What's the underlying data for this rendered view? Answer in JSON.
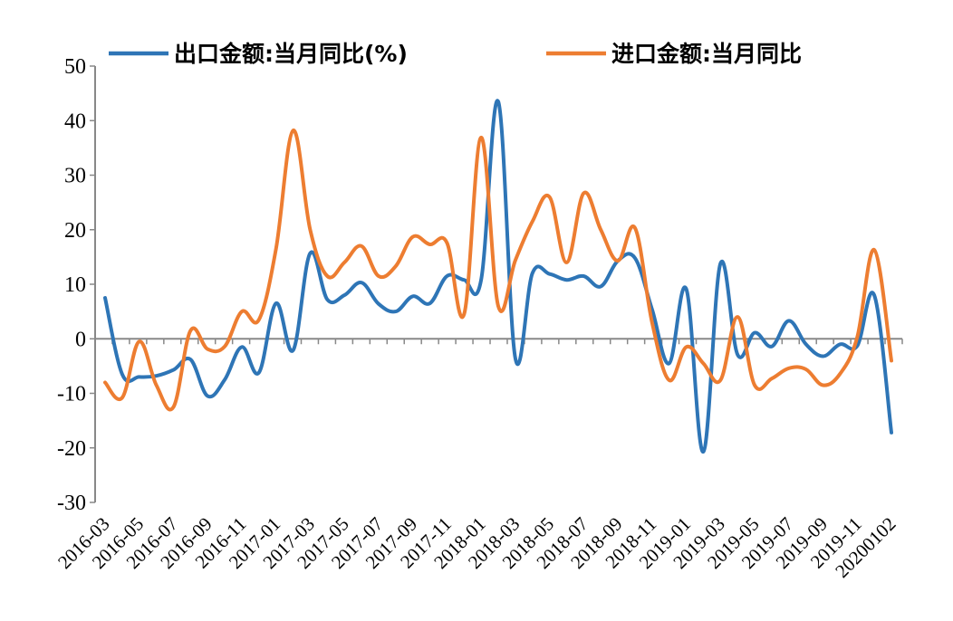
{
  "chart_data": {
    "type": "line",
    "title": "",
    "xlabel": "",
    "ylabel": "",
    "ylim": [
      -30,
      50
    ],
    "yticks": [
      50,
      40,
      30,
      20,
      10,
      0,
      -10,
      -20,
      -30
    ],
    "grid": false,
    "legend_position": "top",
    "x_tick_labels": [
      "2016-03",
      "2016-05",
      "2016-07",
      "2016-09",
      "2016-11",
      "2017-01",
      "2017-03",
      "2017-05",
      "2017-07",
      "2017-09",
      "2017-11",
      "2018-01",
      "2018-03",
      "2018-05",
      "2018-07",
      "2018-09",
      "2018-11",
      "2019-01",
      "2019-03",
      "2019-05",
      "2019-07",
      "2019-09",
      "2019-11",
      "20200102"
    ],
    "x": [
      "2016-03",
      "2016-04",
      "2016-05",
      "2016-06",
      "2016-07",
      "2016-08",
      "2016-09",
      "2016-10",
      "2016-11",
      "2016-12",
      "2017-01",
      "2017-02",
      "2017-03",
      "2017-04",
      "2017-05",
      "2017-06",
      "2017-07",
      "2017-08",
      "2017-09",
      "2017-10",
      "2017-11",
      "2017-12",
      "2018-01",
      "2018-02",
      "2018-03",
      "2018-04",
      "2018-05",
      "2018-06",
      "2018-07",
      "2018-08",
      "2018-09",
      "2018-10",
      "2018-11",
      "2018-12",
      "2019-01",
      "2019-02",
      "2019-03",
      "2019-04",
      "2019-05",
      "2019-06",
      "2019-07",
      "2019-08",
      "2019-09",
      "2019-10",
      "2019-11",
      "2019-12",
      "20200102"
    ],
    "series": [
      {
        "name": "出口金额:当月同比(%)",
        "color": "#2E75B6",
        "values": [
          7.5,
          -6.5,
          -7,
          -6.8,
          -5.7,
          -3.8,
          -10.5,
          -7.5,
          -1.5,
          -6.2,
          6.5,
          -2.1,
          15.7,
          7.2,
          8,
          10.3,
          6.4,
          5,
          7.8,
          6.5,
          11.5,
          10.8,
          10.8,
          43.5,
          -3.6,
          12,
          11.9,
          10.8,
          11.5,
          9.6,
          14.3,
          14.8,
          5.4,
          -4.5,
          9.1,
          -20.7,
          13.8,
          -2.9,
          1.1,
          -1.4,
          3.3,
          -1,
          -3.2,
          -1,
          -1.3,
          8,
          -17.2
        ]
      },
      {
        "name": "进口金额:当月同比",
        "color": "#ED7D31",
        "values": [
          -8,
          -10.8,
          -0.5,
          -8.5,
          -12.5,
          1.5,
          -1.9,
          -1.4,
          5,
          3.5,
          16.5,
          38.2,
          20,
          11.5,
          14,
          17,
          11.5,
          13.3,
          18.7,
          17.3,
          17.6,
          4.5,
          36.9,
          6,
          14.4,
          21.5,
          26,
          14,
          26.7,
          20,
          14.3,
          20.3,
          3,
          -7.6,
          -1.5,
          -4.5,
          -7.6,
          4,
          -8.5,
          -7.3,
          -5.4,
          -5.6,
          -8.5,
          -6.4,
          0.3,
          16.3,
          -4
        ]
      }
    ]
  }
}
